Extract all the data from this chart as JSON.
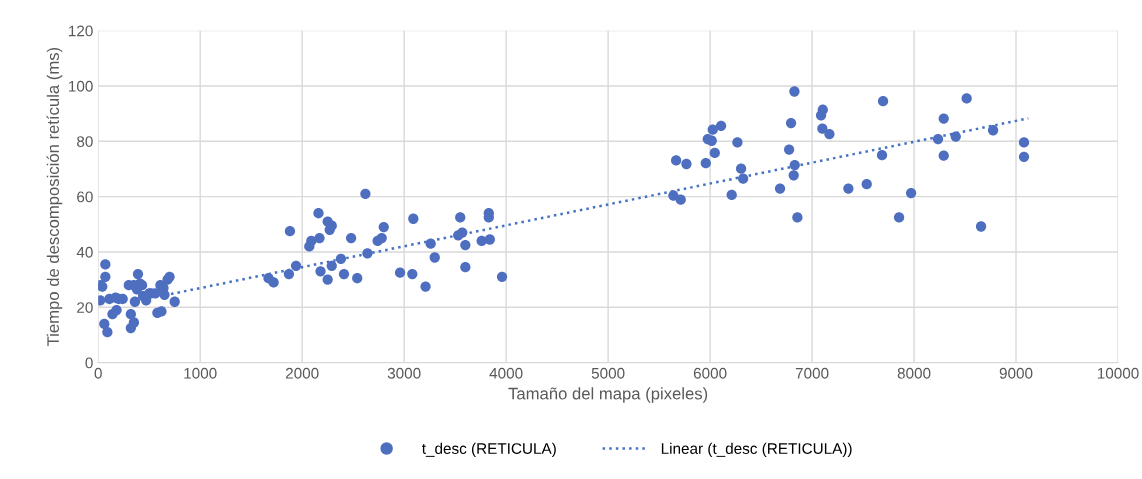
{
  "chart_data": {
    "type": "scatter",
    "xlabel": "Tamaño del mapa (pixeles)",
    "ylabel": "Tiempo de descomposición retícula (ms)",
    "xlim": [
      0,
      10000
    ],
    "xticks": [
      0,
      1000,
      2000,
      3000,
      4000,
      5000,
      6000,
      7000,
      8000,
      9000,
      10000
    ],
    "ylim": [
      0,
      120
    ],
    "yticks": [
      0,
      20,
      40,
      60,
      80,
      100,
      120
    ],
    "grid": true,
    "legend": "bottom",
    "series": [
      {
        "name": "t_desc (RETICULA)",
        "marker": "circle",
        "color": "#4e6fbf",
        "x": [
          20,
          40,
          20,
          70,
          70,
          60,
          90,
          110,
          170,
          140,
          180,
          200,
          240,
          320,
          350,
          320,
          360,
          380,
          410,
          390,
          440,
          470,
          520,
          560,
          610,
          580,
          620,
          650,
          680,
          700,
          750,
          300,
          430,
          500,
          640,
          350,
          1670,
          1720,
          1870,
          1880,
          1940,
          2070,
          2090,
          2160,
          2170,
          2180,
          2250,
          2250,
          2270,
          2290,
          2290,
          2380,
          2410,
          2480,
          2540,
          2620,
          2640,
          2740,
          2780,
          2800,
          2960,
          3080,
          3090,
          3210,
          3260,
          3300,
          3530,
          3550,
          3570,
          3600,
          3600,
          3760,
          3830,
          3830,
          3840,
          3960,
          5667,
          5768,
          5640,
          5712,
          5958,
          5977,
          6016,
          6026,
          6108,
          6046,
          6268,
          6304,
          6324,
          6212,
          6686,
          6775,
          6794,
          6827,
          6830,
          6820,
          6856,
          7088,
          7105,
          7101,
          7170,
          7356,
          7536,
          7696,
          7686,
          7853,
          7971,
          8235,
          8291,
          8291,
          8409,
          8516,
          8657,
          8775,
          9078,
          9078
        ],
        "values": [
          28,
          27.5,
          22.5,
          31,
          35.5,
          14,
          11,
          23,
          23.5,
          17.5,
          19,
          23,
          23,
          12.5,
          14.5,
          17.5,
          22,
          26.5,
          28.5,
          32,
          24,
          22.5,
          25,
          25,
          28,
          18,
          18.5,
          24.5,
          30,
          31,
          22,
          28,
          28,
          25,
          27,
          28,
          30.5,
          29,
          32,
          47.5,
          35,
          42,
          44,
          54,
          45,
          33,
          30,
          51,
          48,
          49.5,
          35,
          37.5,
          32,
          45,
          30.5,
          61,
          39.5,
          44,
          45,
          49,
          32.5,
          32,
          52,
          27.5,
          43,
          38,
          46,
          52.5,
          47,
          42.5,
          34.5,
          44,
          54,
          52.5,
          44.5,
          31,
          73.1,
          71.8,
          60.4,
          58.9,
          72.1,
          80.8,
          80.2,
          84.2,
          85.6,
          75.8,
          79.6,
          70.1,
          66.5,
          60.6,
          62.9,
          77,
          86.6,
          98,
          71.4,
          67.7,
          52.5,
          89.4,
          91.4,
          84.6,
          82.6,
          62.9,
          64.5,
          94.5,
          75,
          52.5,
          61.3,
          80.8,
          88.2,
          74.8,
          81.7,
          95.5,
          49.2,
          84,
          79.6,
          74.4
        ]
      },
      {
        "name": "Linear (t_desc (RETICULA))",
        "type": "line",
        "line_style": "dotted",
        "color": "#4472c4",
        "x": [
          650,
          9120
        ],
        "values": [
          24.3,
          88.3
        ]
      }
    ]
  }
}
